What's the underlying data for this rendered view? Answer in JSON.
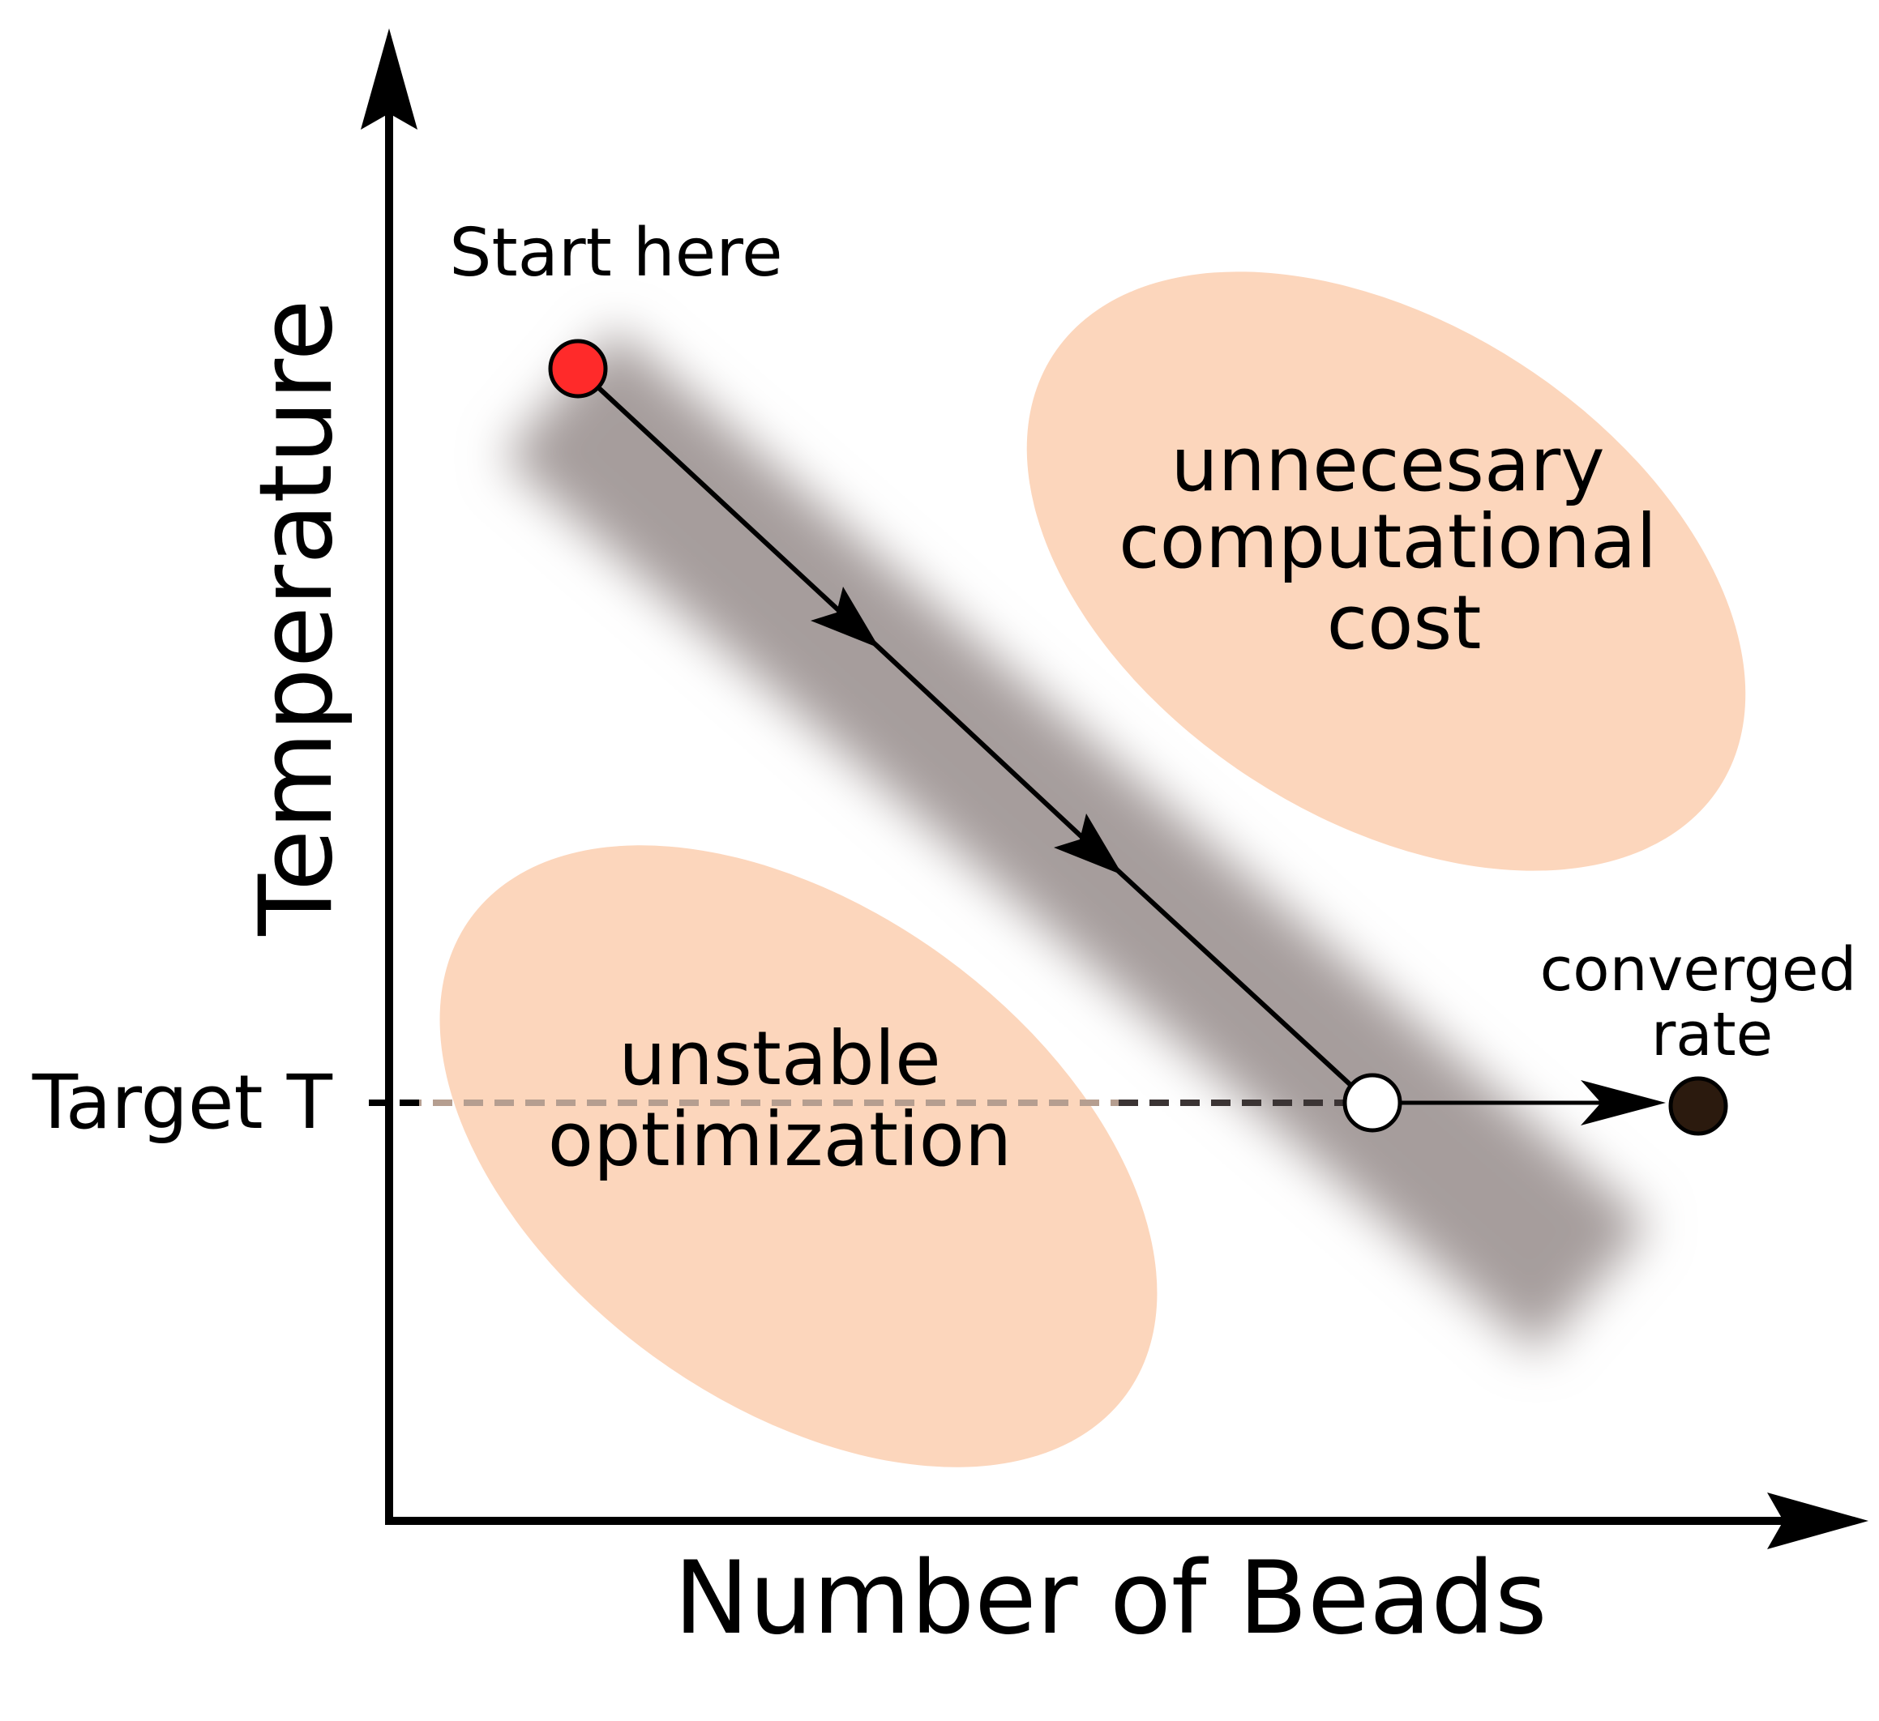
{
  "axes": {
    "x_label": "Number of Beads",
    "y_label": "Temperature",
    "target_label": "Target T"
  },
  "annotations": {
    "start": "Start here",
    "converged_line1": "converged",
    "converged_line2": "rate"
  },
  "regions": {
    "cost_line1": "unnecesary",
    "cost_line2": "computational",
    "cost_line3": "cost",
    "unstable_line1": "unstable",
    "unstable_line2": "optimization"
  },
  "colors": {
    "region_fill": "#fcd6bc",
    "band_fill": "#a69d9c",
    "start_point": "#ff2a2a",
    "end_point": "#ffffff",
    "converged_point": "#2b1a0e",
    "axis": "#000000"
  },
  "markers": {
    "start": "start-point",
    "target": "target-point",
    "converged": "converged-point"
  }
}
